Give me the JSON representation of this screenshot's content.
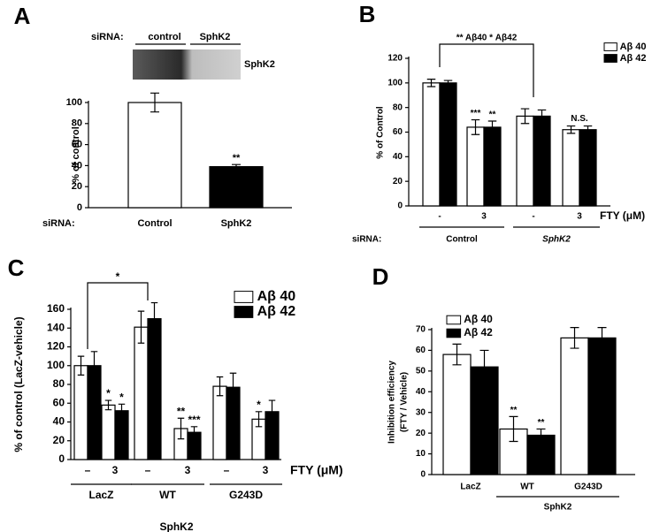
{
  "chart_data": [
    {
      "panel": "A",
      "type": "bar",
      "blot": {
        "prefix": "siRNA:",
        "lanes": [
          "control",
          "SphK2"
        ],
        "band": "SphK2"
      },
      "ylabel": "% of control",
      "category_prefix": "siRNA:",
      "categories": [
        "Control",
        "SphK2"
      ],
      "values": [
        100,
        39
      ],
      "errors": [
        9,
        2
      ],
      "colors": [
        "#ffffff",
        "#000000"
      ],
      "significance": [
        null,
        "**"
      ],
      "ylim": [
        0,
        100
      ],
      "yticks": [
        0,
        20,
        40,
        60,
        80,
        100
      ]
    },
    {
      "panel": "B",
      "type": "bar",
      "ylabel": "% of Control",
      "categories": [
        "-",
        "3",
        "-",
        "3"
      ],
      "xlabel": "FTY (μM)",
      "group_prefix": "siRNA:",
      "groups": [
        "Control",
        "SphK2"
      ],
      "series": [
        {
          "name": "Aβ 40",
          "color": "#ffffff",
          "values": [
            100,
            64,
            73,
            62
          ],
          "errors": [
            3,
            6,
            6,
            3
          ],
          "significance": [
            null,
            "***",
            null,
            null
          ]
        },
        {
          "name": "Aβ 42",
          "color": "#000000",
          "values": [
            100,
            64,
            73,
            62
          ],
          "errors": [
            2,
            5,
            5,
            3
          ],
          "significance": [
            null,
            "**",
            null,
            null
          ]
        }
      ],
      "category_notes": [
        null,
        null,
        null,
        "N.S."
      ],
      "bracket_label": "** Aβ40  * Aβ42",
      "ylim": [
        0,
        120
      ],
      "yticks": [
        0,
        20,
        40,
        60,
        80,
        100,
        120
      ],
      "legend": "upper right"
    },
    {
      "panel": "C",
      "type": "bar",
      "ylabel": "% of control (LacZ-vehicle)",
      "categories": [
        "–",
        "3",
        "–",
        "3",
        "–",
        "3"
      ],
      "xlabel": "FTY (μM)",
      "groups": [
        "LacZ",
        "WT",
        "G243D"
      ],
      "supergroup": "SphK2",
      "series": [
        {
          "name": "Aβ 40",
          "color": "#ffffff",
          "values": [
            100,
            58,
            141,
            33,
            78,
            43
          ],
          "errors": [
            10,
            5,
            17,
            11,
            10,
            8
          ],
          "significance": [
            null,
            "*",
            null,
            "**",
            null,
            "*"
          ]
        },
        {
          "name": "Aβ 42",
          "color": "#000000",
          "values": [
            100,
            52,
            150,
            29,
            77,
            51
          ],
          "errors": [
            15,
            7,
            17,
            6,
            15,
            12
          ],
          "significance": [
            null,
            "*",
            null,
            "***",
            null,
            null
          ]
        }
      ],
      "bracket_label": "*",
      "ylim": [
        0,
        160
      ],
      "yticks": [
        0,
        20,
        40,
        60,
        80,
        100,
        120,
        140,
        160
      ],
      "legend": "upper right"
    },
    {
      "panel": "D",
      "type": "bar",
      "ylabel": [
        "Inhibition efficiency",
        "(FTY / Vehicle)"
      ],
      "categories": [
        "LacZ",
        "WT",
        "G243D"
      ],
      "supergroup": "SphK2",
      "series": [
        {
          "name": "Aβ 40",
          "color": "#ffffff",
          "values": [
            58,
            22,
            66
          ],
          "errors": [
            5,
            6,
            5
          ],
          "significance": [
            null,
            "**",
            null
          ]
        },
        {
          "name": "Aβ 42",
          "color": "#000000",
          "values": [
            52,
            19,
            66
          ],
          "errors": [
            8,
            3,
            5
          ],
          "significance": [
            null,
            "**",
            null
          ]
        }
      ],
      "ylim": [
        0,
        70
      ],
      "yticks": [
        0,
        10,
        20,
        30,
        40,
        50,
        60,
        70
      ],
      "legend": "upper left"
    }
  ]
}
